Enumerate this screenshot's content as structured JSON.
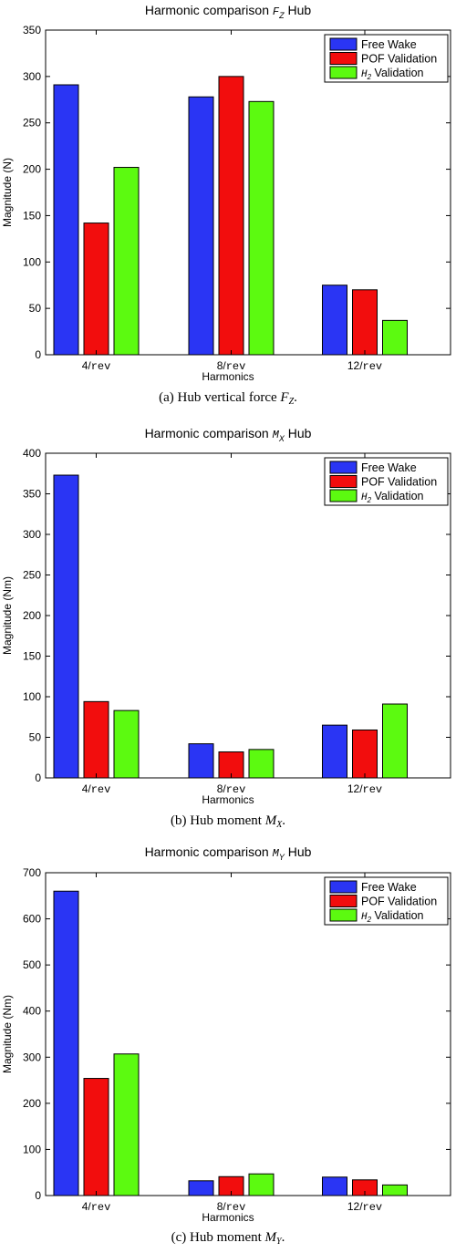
{
  "colors": {
    "Free Wake": "#2a35f4",
    "POF Validation": "#f20d0d",
    "H2 Validation": "#5cfa10"
  },
  "chart_data": [
    {
      "type": "bar",
      "title": {
        "prefix": "Harmonic comparison",
        "symbol": "F",
        "subscript": "Z",
        "suffix": "Hub"
      },
      "xlabel": "Harmonics",
      "ylabel": "Magnitude (N)",
      "categories": [
        {
          "num": "4/",
          "unit": "rev"
        },
        {
          "num": "8/",
          "unit": "rev"
        },
        {
          "num": "12/",
          "unit": "rev"
        }
      ],
      "yticks": [
        0,
        50,
        100,
        150,
        200,
        250,
        300,
        350
      ],
      "ylim": [
        0,
        350
      ],
      "legend_position": "top-right",
      "series": [
        {
          "name": "Free Wake",
          "values": [
            291,
            278,
            75
          ]
        },
        {
          "name": "POF Validation",
          "values": [
            142,
            300,
            70
          ]
        },
        {
          "name": {
            "symbol": "H",
            "subscript": "2",
            "rest": "Validation"
          },
          "values": [
            202,
            273,
            37
          ]
        }
      ],
      "caption": {
        "prefix": "(a) Hub vertical force ",
        "symbol": "F",
        "subscript": "Z",
        "suffix": "."
      }
    },
    {
      "type": "bar",
      "title": {
        "prefix": "Harmonic comparison",
        "symbol": "M",
        "subscript": "X",
        "suffix": "Hub"
      },
      "xlabel": "Harmonics",
      "ylabel": "Magnitude (Nm)",
      "categories": [
        {
          "num": "4/",
          "unit": "rev"
        },
        {
          "num": "8/",
          "unit": "rev"
        },
        {
          "num": "12/",
          "unit": "rev"
        }
      ],
      "yticks": [
        0,
        50,
        100,
        150,
        200,
        250,
        300,
        350,
        400
      ],
      "ylim": [
        0,
        400
      ],
      "legend_position": "top-right",
      "series": [
        {
          "name": "Free Wake",
          "values": [
            373,
            42,
            65
          ]
        },
        {
          "name": "POF Validation",
          "values": [
            94,
            32,
            59
          ]
        },
        {
          "name": {
            "symbol": "H",
            "subscript": "2",
            "rest": "Validation"
          },
          "values": [
            83,
            35,
            91
          ]
        }
      ],
      "caption": {
        "prefix": "(b) Hub moment ",
        "symbol": "M",
        "subscript": "X",
        "suffix": "."
      }
    },
    {
      "type": "bar",
      "title": {
        "prefix": "Harmonic comparison",
        "symbol": "M",
        "subscript": "Y",
        "suffix": "Hub"
      },
      "xlabel": "Harmonics",
      "ylabel": "Magnitude (Nm)",
      "categories": [
        {
          "num": "4/",
          "unit": "rev"
        },
        {
          "num": "8/",
          "unit": "rev"
        },
        {
          "num": "12/",
          "unit": "rev"
        }
      ],
      "yticks": [
        0,
        100,
        200,
        300,
        400,
        500,
        600,
        700
      ],
      "ylim": [
        0,
        700
      ],
      "legend_position": "top-right",
      "series": [
        {
          "name": "Free Wake",
          "values": [
            660,
            32,
            40
          ]
        },
        {
          "name": "POF Validation",
          "values": [
            254,
            41,
            34
          ]
        },
        {
          "name": {
            "symbol": "H",
            "subscript": "2",
            "rest": "Validation"
          },
          "values": [
            307,
            47,
            23
          ]
        }
      ],
      "caption": {
        "prefix": "(c) Hub moment ",
        "symbol": "M",
        "subscript": "Y",
        "suffix": "."
      }
    }
  ]
}
